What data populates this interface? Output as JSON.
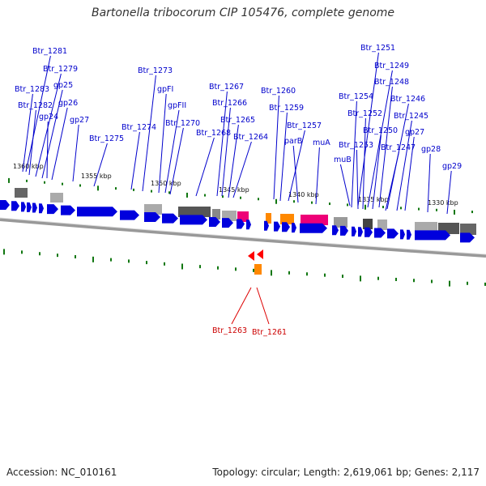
{
  "title": "Bartonella tribocorum CIP 105476, complete genome",
  "footer": {
    "accession": "Accession: NC_010161",
    "summary": "Topology: circular; Length: 2,619,061 bp; Genes: 2,117"
  },
  "colors": {
    "gene": "#0000dd",
    "label": "#0000cc",
    "highlight_label": "#cc0000",
    "orange": "#ff8800",
    "magenta": "#ee0077",
    "backbone": "#888888",
    "tick": "#117711"
  },
  "scale_labels": [
    "1360 kbp",
    "1355 kbp",
    "1350 kbp",
    "1345 kbp",
    "1340 kbp",
    "1335 kbp",
    "1330 kbp"
  ],
  "gene_labels": [
    "Btr_1281",
    "Btr_1279",
    "Btr_1283",
    "gp25",
    "Btr_1282",
    "gp26",
    "gp24",
    "gp27",
    "Btr_1275",
    "Btr_1274",
    "Btr_1273",
    "gpFI",
    "gpFII",
    "Btr_1270",
    "Btr_1268",
    "Btr_1267",
    "Btr_1266",
    "Btr_1265",
    "Btr_1264",
    "Btr_1260",
    "Btr_1259",
    "Btr_1257",
    "parB",
    "muA",
    "muB",
    "Btr_1251",
    "Btr_1249",
    "Btr_1248",
    "Btr_1254",
    "Btr_1246",
    "Btr_1252",
    "Btr_1245",
    "Btr_1250",
    "gp27",
    "Btr_1253",
    "Btr_1247",
    "gp28",
    "gp29"
  ],
  "highlighted_genes": [
    "Btr_1263",
    "Btr_1261"
  ]
}
